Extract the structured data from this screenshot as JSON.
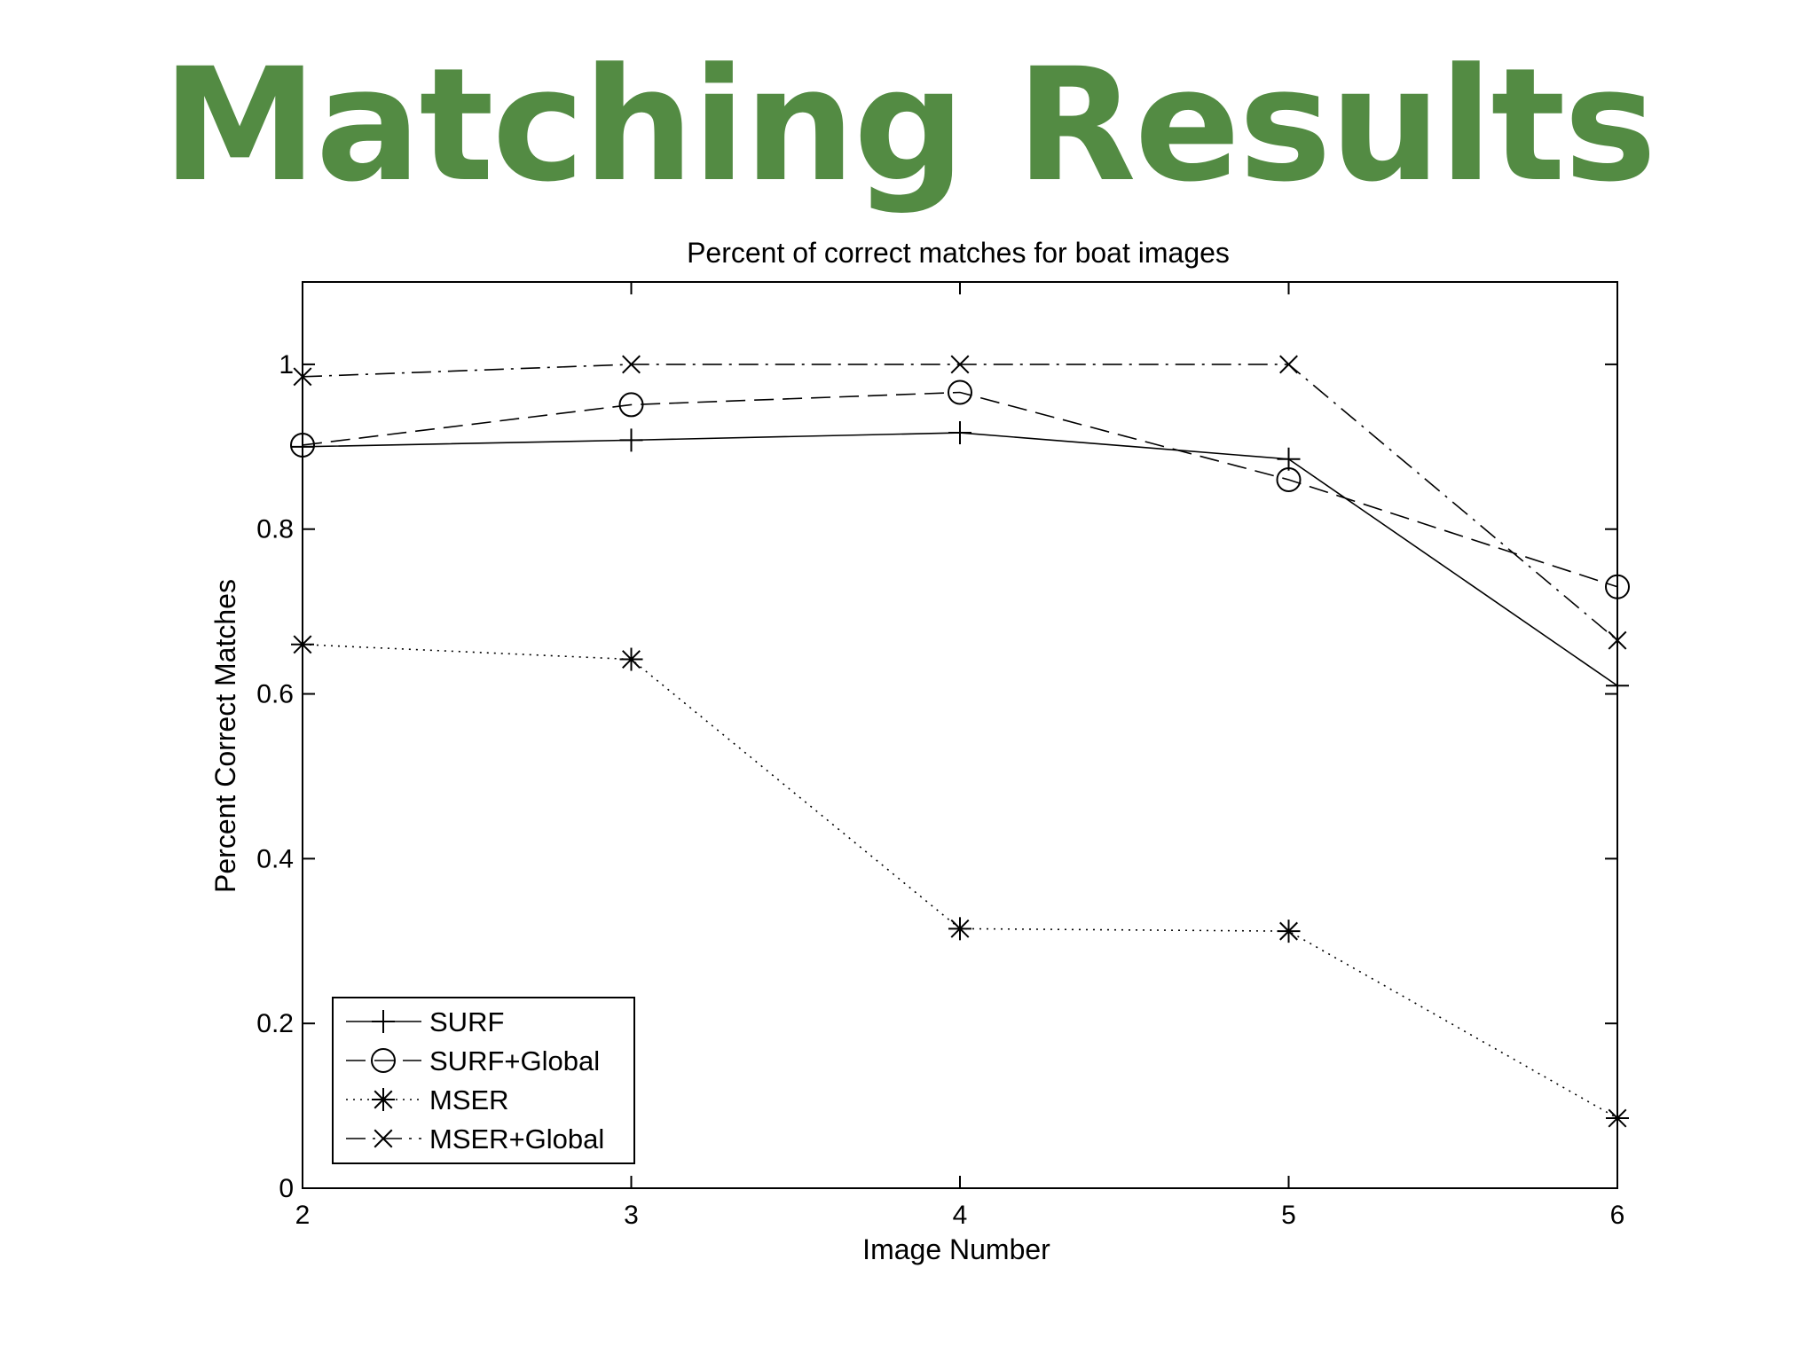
{
  "slide": {
    "title": "Matching Results"
  },
  "chart_data": {
    "type": "line",
    "title": "Percent of correct matches for boat images",
    "xlabel": "Image Number",
    "ylabel": "Percent Correct Matches",
    "x": [
      2,
      3,
      4,
      5,
      6
    ],
    "xlim": [
      2,
      6
    ],
    "ylim": [
      0,
      1.1
    ],
    "xticks": [
      2,
      3,
      4,
      5,
      6
    ],
    "yticks": [
      0,
      0.2,
      0.4,
      0.6,
      0.8,
      1
    ],
    "ytick_labels": [
      "0",
      "0.2",
      "0.4",
      "0.6",
      "0.8",
      "1"
    ],
    "grid": false,
    "legend_position": "bottom-left",
    "series": [
      {
        "name": "SURF",
        "values": [
          0.9,
          0.908,
          0.917,
          0.885,
          0.61
        ],
        "marker": "plus",
        "line": "solid"
      },
      {
        "name": "SURF+Global",
        "values": [
          0.902,
          0.951,
          0.966,
          0.86,
          0.73
        ],
        "marker": "circle",
        "line": "dashed"
      },
      {
        "name": "MSER",
        "values": [
          0.66,
          0.642,
          0.315,
          0.312,
          0.085
        ],
        "marker": "star",
        "line": "dotted"
      },
      {
        "name": "MSER+Global",
        "values": [
          0.985,
          1.0,
          1.0,
          1.0,
          0.665
        ],
        "marker": "x",
        "line": "dashdot"
      }
    ],
    "colors": {
      "line": "#000000",
      "title_green": "#538b43"
    }
  }
}
